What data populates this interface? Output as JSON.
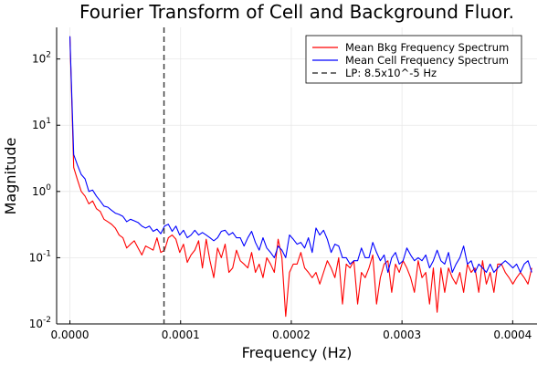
{
  "chart_data": {
    "type": "line",
    "title": "Fourier Transform of Cell and Background Fluor.",
    "xlabel": "Frequency (Hz)",
    "ylabel": "Magnitude",
    "yscale": "log",
    "xlim": [
      -1.2e-05,
      0.000422
    ],
    "ylim": [
      0.01,
      300
    ],
    "grid": true,
    "legend_position": "top-right",
    "x_ticks": [
      {
        "value": 0,
        "label": "0.0000"
      },
      {
        "value": 0.0001,
        "label": "0.0001"
      },
      {
        "value": 0.0002,
        "label": "0.0002"
      },
      {
        "value": 0.0003,
        "label": "0.0003"
      },
      {
        "value": 0.0004,
        "label": "0.0004"
      }
    ],
    "y_ticks": [
      {
        "value": 0.01,
        "base": "10",
        "exp": "-2"
      },
      {
        "value": 0.1,
        "base": "10",
        "exp": "-1"
      },
      {
        "value": 1,
        "base": "10",
        "exp": "0"
      },
      {
        "value": 10,
        "base": "10",
        "exp": "1"
      },
      {
        "value": 100,
        "base": "10",
        "exp": "2"
      }
    ],
    "x_step": 3.42e-06,
    "series": [
      {
        "name": "Mean Bkg Frequency Spectrum",
        "color": "#ff0000",
        "values": [
          220,
          2.3,
          1.5,
          1.0,
          0.85,
          0.65,
          0.72,
          0.55,
          0.5,
          0.38,
          0.35,
          0.32,
          0.28,
          0.22,
          0.2,
          0.14,
          0.16,
          0.18,
          0.14,
          0.11,
          0.15,
          0.14,
          0.13,
          0.2,
          0.12,
          0.13,
          0.2,
          0.22,
          0.19,
          0.12,
          0.16,
          0.085,
          0.11,
          0.13,
          0.18,
          0.07,
          0.19,
          0.09,
          0.05,
          0.14,
          0.1,
          0.16,
          0.06,
          0.07,
          0.13,
          0.09,
          0.08,
          0.07,
          0.12,
          0.06,
          0.08,
          0.05,
          0.1,
          0.08,
          0.06,
          0.19,
          0.1,
          0.013,
          0.06,
          0.08,
          0.08,
          0.12,
          0.07,
          0.06,
          0.05,
          0.06,
          0.04,
          0.06,
          0.09,
          0.07,
          0.05,
          0.1,
          0.02,
          0.08,
          0.07,
          0.09,
          0.02,
          0.06,
          0.05,
          0.07,
          0.11,
          0.02,
          0.05,
          0.08,
          0.09,
          0.03,
          0.08,
          0.06,
          0.09,
          0.07,
          0.05,
          0.03,
          0.09,
          0.05,
          0.06,
          0.02,
          0.07,
          0.015,
          0.07,
          0.03,
          0.07,
          0.05,
          0.04,
          0.06,
          0.03,
          0.08,
          0.06,
          0.07,
          0.03,
          0.09,
          0.04,
          0.06,
          0.03,
          0.08,
          0.08,
          0.06,
          0.05,
          0.04,
          0.05,
          0.06,
          0.05,
          0.04,
          0.07
        ]
      },
      {
        "name": "Mean Cell Frequency Spectrum",
        "color": "#0000ff",
        "values": [
          220,
          3.6,
          2.5,
          1.8,
          1.55,
          1.0,
          1.05,
          0.85,
          0.72,
          0.6,
          0.58,
          0.52,
          0.47,
          0.45,
          0.42,
          0.35,
          0.38,
          0.36,
          0.34,
          0.3,
          0.28,
          0.3,
          0.25,
          0.27,
          0.23,
          0.3,
          0.32,
          0.25,
          0.3,
          0.22,
          0.26,
          0.2,
          0.22,
          0.26,
          0.22,
          0.24,
          0.22,
          0.2,
          0.18,
          0.2,
          0.25,
          0.26,
          0.22,
          0.24,
          0.2,
          0.2,
          0.15,
          0.2,
          0.25,
          0.17,
          0.13,
          0.2,
          0.14,
          0.12,
          0.1,
          0.15,
          0.13,
          0.1,
          0.22,
          0.19,
          0.16,
          0.17,
          0.14,
          0.2,
          0.12,
          0.28,
          0.22,
          0.26,
          0.19,
          0.12,
          0.16,
          0.15,
          0.1,
          0.1,
          0.08,
          0.09,
          0.09,
          0.14,
          0.1,
          0.1,
          0.17,
          0.12,
          0.09,
          0.11,
          0.06,
          0.1,
          0.12,
          0.08,
          0.09,
          0.14,
          0.11,
          0.09,
          0.1,
          0.09,
          0.11,
          0.07,
          0.09,
          0.13,
          0.09,
          0.08,
          0.12,
          0.06,
          0.08,
          0.1,
          0.15,
          0.08,
          0.09,
          0.06,
          0.08,
          0.07,
          0.06,
          0.08,
          0.06,
          0.07,
          0.08,
          0.09,
          0.08,
          0.07,
          0.08,
          0.06,
          0.08,
          0.09,
          0.06
        ]
      }
    ],
    "vline": {
      "x": 8.5e-05,
      "name": "LP: 8.5x10^-5 Hz",
      "color": "#404040"
    }
  }
}
